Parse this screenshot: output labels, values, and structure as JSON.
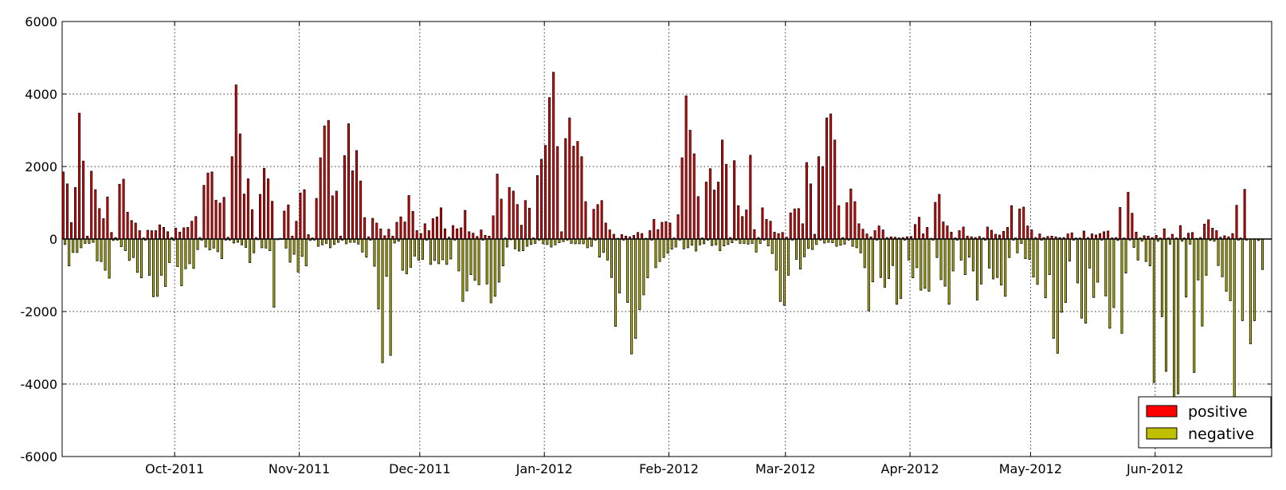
{
  "chart_data": {
    "type": "bar",
    "title": "",
    "xlabel": "",
    "ylabel": "",
    "x_axis": "date",
    "xlim": [
      "2011-09-03",
      "2012-06-30"
    ],
    "ylim": [
      -6000,
      6000
    ],
    "grid": true,
    "legend_position": "bottom-right",
    "y_ticks": [
      "-6000",
      "-4000",
      "-2000",
      "0",
      "2000",
      "4000",
      "6000"
    ],
    "x_ticks": [
      {
        "date": "2011-10-01",
        "label": "Oct-2011"
      },
      {
        "date": "2011-11-01",
        "label": "Nov-2011"
      },
      {
        "date": "2011-12-01",
        "label": "Dec-2011"
      },
      {
        "date": "2012-01-01",
        "label": "Jan-2012"
      },
      {
        "date": "2012-02-01",
        "label": "Feb-2012"
      },
      {
        "date": "2012-03-01",
        "label": "Mar-2012"
      },
      {
        "date": "2012-04-01",
        "label": "Apr-2012"
      },
      {
        "date": "2012-05-01",
        "label": "May-2012"
      },
      {
        "date": "2012-06-01",
        "label": "Jun-2012"
      }
    ],
    "start_date": "2011-09-03",
    "series": [
      {
        "name": "positive",
        "color": "#ff0000",
        "values": [
          1850,
          1520,
          450,
          1420,
          3470,
          2150,
          80,
          1870,
          1360,
          840,
          560,
          1160,
          180,
          40,
          1510,
          1650,
          740,
          510,
          440,
          230,
          30,
          240,
          230,
          230,
          390,
          320,
          200,
          40,
          300,
          190,
          310,
          320,
          490,
          620,
          40,
          1480,
          1820,
          1850,
          1070,
          990,
          1150,
          50,
          2270,
          4250,
          2900,
          1240,
          1660,
          810,
          40,
          1230,
          1950,
          1660,
          1040,
          10,
          20,
          770,
          940,
          80,
          490,
          1270,
          1360,
          120,
          30,
          1120,
          2240,
          3120,
          3270,
          1190,
          1320,
          80,
          2300,
          3180,
          1880,
          2440,
          1600,
          590,
          60,
          570,
          440,
          280,
          90,
          270,
          80,
          460,
          610,
          470,
          1200,
          760,
          230,
          150,
          420,
          230,
          560,
          610,
          860,
          280,
          50,
          370,
          280,
          310,
          790,
          200,
          160,
          70,
          250,
          100,
          80,
          640,
          1790,
          1100,
          30,
          1420,
          1320,
          950,
          380,
          1060,
          850,
          30,
          1750,
          2200,
          2580,
          3900,
          4600,
          2550,
          200,
          2770,
          3340,
          2560,
          2690,
          2270,
          1030,
          40,
          820,
          950,
          1060,
          440,
          250,
          130,
          20,
          120,
          80,
          60,
          100,
          180,
          150,
          20,
          230,
          540,
          260,
          460,
          480,
          440,
          30,
          670,
          2240,
          3950,
          3000,
          2350,
          1170,
          30,
          1570,
          1940,
          1350,
          1570,
          2730,
          2060,
          40,
          2160,
          920,
          620,
          800,
          2310,
          260,
          40,
          860,
          540,
          490,
          190,
          150,
          180,
          50,
          720,
          830,
          840,
          420,
          2110,
          1520,
          130,
          2270,
          2000,
          3340,
          3450,
          2730,
          920,
          40,
          1000,
          1380,
          1030,
          420,
          270,
          140,
          60,
          230,
          360,
          250,
          40,
          60,
          50,
          30,
          40,
          60,
          70,
          400,
          600,
          140,
          320,
          20,
          1010,
          1230,
          470,
          360,
          190,
          30,
          230,
          330,
          80,
          60,
          40,
          70,
          30,
          330,
          240,
          130,
          110,
          210,
          320,
          920,
          30,
          830,
          880,
          360,
          250,
          40,
          140,
          40,
          70,
          80,
          60,
          40,
          40,
          140,
          170,
          30,
          30,
          220,
          40,
          140,
          110,
          150,
          200,
          220,
          30,
          40,
          870,
          30,
          1290,
          710,
          190,
          30,
          90,
          80,
          40,
          100,
          30,
          280,
          30,
          130,
          30,
          370,
          30,
          160,
          180,
          20,
          40,
          410,
          530,
          300,
          230,
          50,
          90,
          60,
          150,
          930,
          30,
          1370
        ]
      },
      {
        "name": "negative",
        "color": "#bfbf00",
        "values": [
          -150,
          -740,
          -370,
          -370,
          -240,
          -120,
          -120,
          -90,
          -600,
          -620,
          -860,
          -1080,
          -40,
          -30,
          -210,
          -320,
          -590,
          -510,
          -920,
          -1070,
          -30,
          -1000,
          -1590,
          -1580,
          -1000,
          -1310,
          -650,
          -30,
          -760,
          -1290,
          -820,
          -680,
          -810,
          -290,
          -30,
          -220,
          -300,
          -250,
          -350,
          -540,
          -30,
          -30,
          -110,
          -90,
          -160,
          -230,
          -650,
          -380,
          -20,
          -240,
          -250,
          -320,
          -1880,
          -20,
          -10,
          -250,
          -640,
          -420,
          -910,
          -480,
          -740,
          -40,
          -30,
          -200,
          -160,
          -120,
          -240,
          -150,
          -90,
          -30,
          -130,
          -90,
          -90,
          -140,
          -360,
          -500,
          -30,
          -750,
          -1930,
          -3410,
          -1030,
          -3210,
          -110,
          -60,
          -860,
          -960,
          -780,
          -470,
          -580,
          -560,
          -30,
          -700,
          -590,
          -680,
          -570,
          -700,
          -550,
          -30,
          -880,
          -1720,
          -1430,
          -980,
          -1140,
          -1260,
          -30,
          -1240,
          -1760,
          -1580,
          -1190,
          -740,
          -220,
          -20,
          -270,
          -330,
          -320,
          -200,
          -150,
          -120,
          -30,
          -130,
          -150,
          -220,
          -160,
          -100,
          -70,
          -30,
          -120,
          -130,
          -130,
          -130,
          -240,
          -200,
          -30,
          -500,
          -370,
          -580,
          -1060,
          -2410,
          -1490,
          -30,
          -1750,
          -3170,
          -2740,
          -1950,
          -1540,
          -1070,
          -30,
          -790,
          -620,
          -510,
          -390,
          -280,
          -220,
          -30,
          -270,
          -240,
          -170,
          -330,
          -160,
          -130,
          -30,
          -180,
          -160,
          -320,
          -190,
          -150,
          -100,
          -30,
          -120,
          -120,
          -140,
          -120,
          -360,
          -120,
          -30,
          -190,
          -400,
          -860,
          -1720,
          -1830,
          -1000,
          -30,
          -560,
          -830,
          -490,
          -260,
          -290,
          -150,
          -30,
          -110,
          -90,
          -100,
          -200,
          -170,
          -140,
          -30,
          -200,
          -240,
          -380,
          -790,
          -1980,
          -1180,
          -30,
          -1060,
          -1330,
          -1090,
          -730,
          -1800,
          -1640,
          -30,
          -580,
          -1070,
          -790,
          -1410,
          -1360,
          -1440,
          -30,
          -510,
          -1120,
          -1300,
          -1800,
          -880,
          -30,
          -580,
          -980,
          -500,
          -880,
          -1680,
          -1240,
          -30,
          -800,
          -1100,
          -1060,
          -1270,
          -1580,
          -510,
          -30,
          -380,
          -120,
          -540,
          -560,
          -1050,
          -1250,
          -30,
          -1620,
          -980,
          -2740,
          -3150,
          -2020,
          -1750,
          -610,
          -30,
          -1210,
          -2180,
          -2320,
          -800,
          -1610,
          -1190,
          -30,
          -1570,
          -2460,
          -1890,
          -40,
          -2600,
          -940,
          -30,
          -230,
          -580,
          -60,
          -620,
          -740,
          -3960,
          -60,
          -2140,
          -3650,
          -140,
          -4480,
          -4270,
          -60,
          -1600,
          -140,
          -3680,
          -1130,
          -2400,
          -1000,
          -40,
          -60,
          -730,
          -1040,
          -1440,
          -1700,
          -4450,
          -30,
          -2250,
          -30,
          -2890,
          -2250,
          -40,
          -840
        ]
      }
    ]
  }
}
